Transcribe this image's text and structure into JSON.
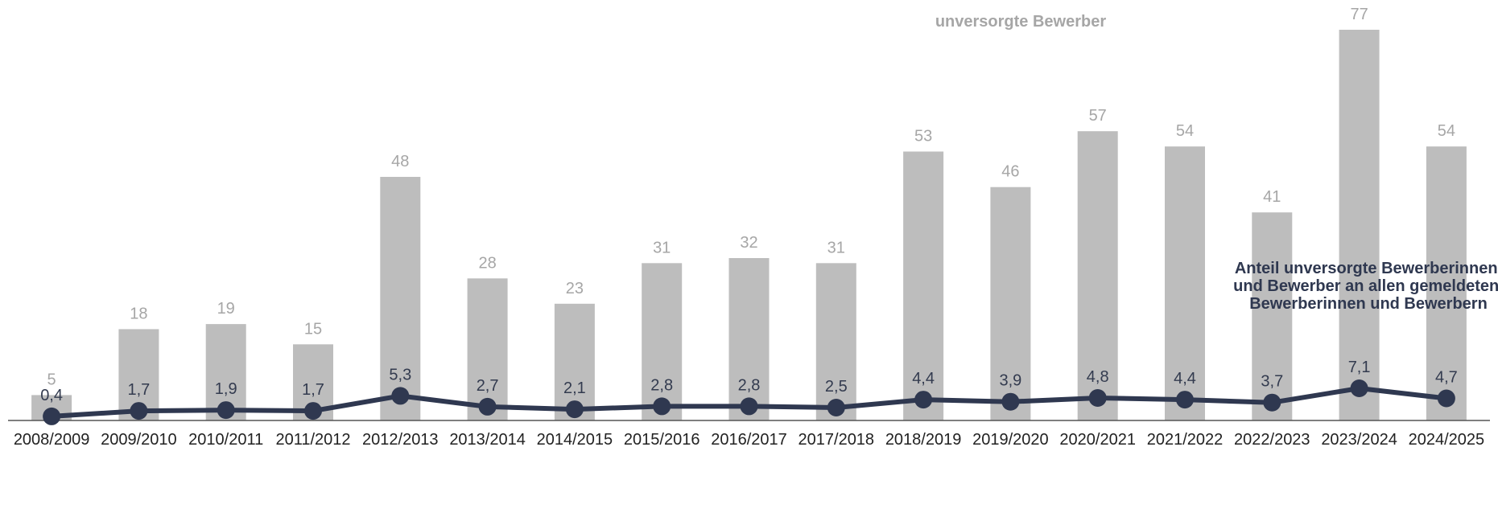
{
  "chart_data": {
    "type": "bar",
    "categories": [
      "2008/2009",
      "2009/2010",
      "2010/2011",
      "2011/2012",
      "2012/2013",
      "2013/2014",
      "2014/2015",
      "2015/2016",
      "2016/2017",
      "2017/2018",
      "2018/2019",
      "2019/2020",
      "2020/2021",
      "2021/2022",
      "2022/2023",
      "2023/2024",
      "2024/2025"
    ],
    "series": [
      {
        "name": "unversorgte Bewerber",
        "type": "bar",
        "values": [
          5,
          18,
          19,
          15,
          48,
          28,
          23,
          31,
          32,
          31,
          53,
          46,
          57,
          54,
          41,
          77,
          54
        ],
        "labels": [
          "5",
          "18",
          "19",
          "15",
          "48",
          "28",
          "23",
          "31",
          "32",
          "31",
          "53",
          "46",
          "57",
          "54",
          "41",
          "77",
          "54"
        ],
        "color": "#bdbdbd"
      },
      {
        "name_lines": [
          "Anteil unversorgte Bewerberinnen",
          "und Bewerber an allen gemeldeten",
          "Bewerberinnen und Bewerbern"
        ],
        "type": "line",
        "values": [
          0.4,
          1.7,
          1.9,
          1.7,
          5.3,
          2.7,
          2.1,
          2.8,
          2.8,
          2.5,
          4.4,
          3.9,
          4.8,
          4.4,
          3.7,
          7.1,
          4.7
        ],
        "labels": [
          "0,4",
          "1,7",
          "1,9",
          "1,7",
          "5,3",
          "2,7",
          "2,1",
          "2,8",
          "2,8",
          "2,5",
          "4,4",
          "3,9",
          "4,8",
          "4,4",
          "3,7",
          "7,1",
          "4,7"
        ],
        "color": "#2f3850"
      }
    ],
    "bar_ylim": [
      0,
      80
    ],
    "line_ylim": [
      0,
      60
    ],
    "grid": false,
    "legend": "top-right"
  }
}
